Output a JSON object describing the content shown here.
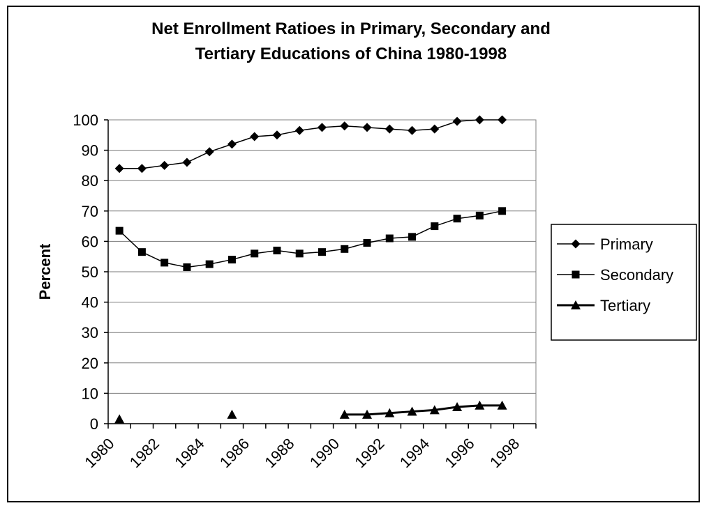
{
  "chart_data": {
    "type": "line",
    "title_line1": "Net Enrollment Ratioes in Primary, Secondary and",
    "title_line2": "Tertiary Educations of China 1980-1998",
    "xlabel": "",
    "ylabel": "Percent",
    "ylim": [
      0,
      100
    ],
    "yticks": [
      0,
      10,
      20,
      30,
      40,
      50,
      60,
      70,
      80,
      90,
      100
    ],
    "xlim": [
      1980,
      1999
    ],
    "xticks": [
      "1980",
      "1982",
      "1984",
      "1986",
      "1988",
      "1990",
      "1992",
      "1994",
      "1996",
      "1998"
    ],
    "grid": "horizontal",
    "legend_position": "right",
    "series": [
      {
        "name": "Primary",
        "marker": "diamond",
        "color": "#000000",
        "connected": true,
        "points": [
          [
            1980.5,
            84
          ],
          [
            1981.5,
            84
          ],
          [
            1982.5,
            85
          ],
          [
            1983.5,
            86
          ],
          [
            1984.5,
            89.5
          ],
          [
            1985.5,
            92
          ],
          [
            1986.5,
            94.5
          ],
          [
            1987.5,
            95
          ],
          [
            1988.5,
            96.5
          ],
          [
            1989.5,
            97.5
          ],
          [
            1990.5,
            98
          ],
          [
            1991.5,
            97.5
          ],
          [
            1992.5,
            97
          ],
          [
            1993.5,
            96.5
          ],
          [
            1994.5,
            97
          ],
          [
            1995.5,
            99.5
          ],
          [
            1996.5,
            100
          ],
          [
            1997.5,
            100
          ]
        ]
      },
      {
        "name": "Secondary",
        "marker": "square",
        "color": "#000000",
        "connected": true,
        "points": [
          [
            1980.5,
            63.5
          ],
          [
            1981.5,
            56.5
          ],
          [
            1982.5,
            53
          ],
          [
            1983.5,
            51.5
          ],
          [
            1984.5,
            52.5
          ],
          [
            1985.5,
            54
          ],
          [
            1986.5,
            56
          ],
          [
            1987.5,
            57
          ],
          [
            1988.5,
            56
          ],
          [
            1989.5,
            56.5
          ],
          [
            1990.5,
            57.5
          ],
          [
            1991.5,
            59.5
          ],
          [
            1992.5,
            61
          ],
          [
            1993.5,
            61.5
          ],
          [
            1994.5,
            65
          ],
          [
            1995.5,
            67.5
          ],
          [
            1996.5,
            68.5
          ],
          [
            1997.5,
            70
          ]
        ]
      },
      {
        "name": "Tertiary",
        "marker": "triangle",
        "color": "#000000",
        "connected": true,
        "isolated_points": [
          [
            1980.5,
            1.5
          ],
          [
            1985.5,
            3
          ]
        ],
        "points": [
          [
            1990.5,
            3
          ],
          [
            1991.5,
            3
          ],
          [
            1992.5,
            3.5
          ],
          [
            1993.5,
            4
          ],
          [
            1994.5,
            4.5
          ],
          [
            1995.5,
            5.5
          ],
          [
            1996.5,
            6
          ],
          [
            1997.5,
            6
          ]
        ]
      }
    ]
  }
}
